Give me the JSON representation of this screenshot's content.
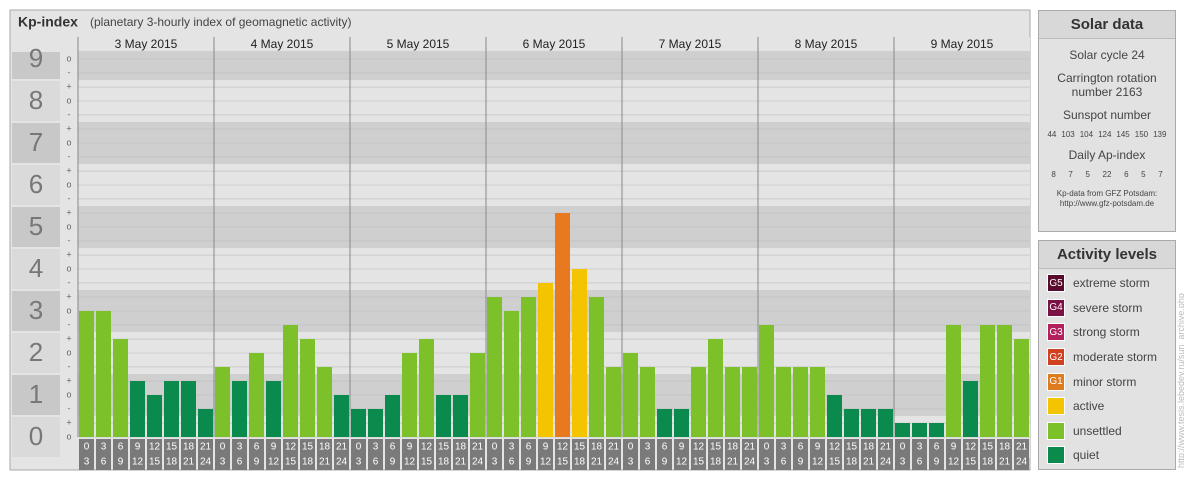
{
  "chart_data": {
    "type": "bar",
    "title": "Kp-index",
    "subtitle": "(planetary 3-hourly index of geomagnetic activity)",
    "ylim": [
      0,
      9
    ],
    "yticks": [
      0,
      1,
      2,
      3,
      4,
      5,
      6,
      7,
      8,
      9
    ],
    "minor_yticks": [
      {
        "value": 0,
        "label": "o"
      },
      {
        "value": 0.333,
        "label": "+"
      },
      {
        "value": 0.667,
        "label": "-"
      },
      {
        "value": 1,
        "label": "o"
      },
      {
        "value": 1.333,
        "label": "+"
      },
      {
        "value": 1.667,
        "label": "-"
      },
      {
        "value": 2,
        "label": "o"
      },
      {
        "value": 2.333,
        "label": "+"
      },
      {
        "value": 2.667,
        "label": "-"
      },
      {
        "value": 3,
        "label": "o"
      },
      {
        "value": 3.333,
        "label": "+"
      },
      {
        "value": 3.667,
        "label": "-"
      },
      {
        "value": 4,
        "label": "o"
      },
      {
        "value": 4.333,
        "label": "+"
      },
      {
        "value": 4.667,
        "label": "-"
      },
      {
        "value": 5,
        "label": "o"
      },
      {
        "value": 5.333,
        "label": "+"
      },
      {
        "value": 5.667,
        "label": "-"
      },
      {
        "value": 6,
        "label": "o"
      },
      {
        "value": 6.333,
        "label": "+"
      },
      {
        "value": 6.667,
        "label": "-"
      },
      {
        "value": 7,
        "label": "o"
      },
      {
        "value": 7.333,
        "label": "+"
      },
      {
        "value": 7.667,
        "label": "-"
      },
      {
        "value": 8,
        "label": "o"
      },
      {
        "value": 8.333,
        "label": "+"
      },
      {
        "value": 8.667,
        "label": "-"
      },
      {
        "value": 9,
        "label": "o"
      }
    ],
    "grid": true,
    "hours_from": [
      "0",
      "3",
      "6",
      "9",
      "12",
      "15",
      "18",
      "21"
    ],
    "hours_to": [
      "3",
      "6",
      "9",
      "12",
      "15",
      "18",
      "21",
      "24"
    ],
    "days": [
      {
        "label": "3 May 2015",
        "values": [
          3,
          3,
          2.333,
          1.333,
          1,
          1.333,
          1.333,
          0.667
        ],
        "colors": [
          "#7dc12a",
          "#7dc12a",
          "#7dc12a",
          "#0a8a4c",
          "#0a8a4c",
          "#0a8a4c",
          "#0a8a4c",
          "#0a8a4c"
        ]
      },
      {
        "label": "4 May 2015",
        "values": [
          1.667,
          1.333,
          2,
          1.333,
          2.667,
          2.333,
          1.667,
          1
        ],
        "colors": [
          "#7dc12a",
          "#0a8a4c",
          "#7dc12a",
          "#0a8a4c",
          "#7dc12a",
          "#7dc12a",
          "#7dc12a",
          "#0a8a4c"
        ]
      },
      {
        "label": "5 May 2015",
        "values": [
          0.667,
          0.667,
          1,
          2,
          2.333,
          1,
          1,
          2
        ],
        "colors": [
          "#0a8a4c",
          "#0a8a4c",
          "#0a8a4c",
          "#7dc12a",
          "#7dc12a",
          "#0a8a4c",
          "#0a8a4c",
          "#7dc12a"
        ]
      },
      {
        "label": "6 May 2015",
        "values": [
          3.333,
          3,
          3.333,
          3.667,
          5.333,
          4,
          3.333,
          1.667
        ],
        "colors": [
          "#7dc12a",
          "#7dc12a",
          "#7dc12a",
          "#f5c400",
          "#e8791e",
          "#f5c400",
          "#7dc12a",
          "#7dc12a"
        ]
      },
      {
        "label": "7 May 2015",
        "values": [
          2,
          1.667,
          0.667,
          0.667,
          1.667,
          2.333,
          1.667,
          1.667
        ],
        "colors": [
          "#7dc12a",
          "#7dc12a",
          "#0a8a4c",
          "#0a8a4c",
          "#7dc12a",
          "#7dc12a",
          "#7dc12a",
          "#7dc12a"
        ]
      },
      {
        "label": "8 May 2015",
        "values": [
          2.667,
          1.667,
          1.667,
          1.667,
          1,
          0.667,
          0.667,
          0.667
        ],
        "colors": [
          "#7dc12a",
          "#7dc12a",
          "#7dc12a",
          "#7dc12a",
          "#0a8a4c",
          "#0a8a4c",
          "#0a8a4c",
          "#0a8a4c"
        ]
      },
      {
        "label": "9 May 2015",
        "values": [
          0.333,
          0.333,
          0.333,
          2.667,
          1.333,
          2.667,
          2.667,
          2.333
        ],
        "colors": [
          "#0a8a4c",
          "#0a8a4c",
          "#0a8a4c",
          "#7dc12a",
          "#0a8a4c",
          "#7dc12a",
          "#7dc12a",
          "#7dc12a"
        ]
      }
    ]
  },
  "solar_data": {
    "title": "Solar data",
    "solar_cycle": "Solar cycle 24",
    "carrington": "Carrington rotation number 2163",
    "sunspot_title": "Sunspot number",
    "sunspot_numbers": [
      44,
      103,
      104,
      124,
      145,
      150,
      139
    ],
    "ap_title": "Daily Ap-index",
    "ap_index": [
      8,
      7,
      5,
      22,
      6,
      5,
      7
    ],
    "source": "Kp-data from GFZ Potsdam:",
    "source_url": "http://www.gfz-potsdam.de"
  },
  "activity_levels": {
    "title": "Activity levels",
    "items": [
      {
        "badge": "G5",
        "label": "extreme storm",
        "color": "#5a0a2c"
      },
      {
        "badge": "G4",
        "label": "severe storm",
        "color": "#7c1044"
      },
      {
        "badge": "G3",
        "label": "strong storm",
        "color": "#b3205c"
      },
      {
        "badge": "G2",
        "label": "moderate storm",
        "color": "#d0401e"
      },
      {
        "badge": "G1",
        "label": "minor storm",
        "color": "#e07a1e"
      },
      {
        "label": "active",
        "color": "#f5c400"
      },
      {
        "label": "unsettled",
        "color": "#7dc12a"
      },
      {
        "label": "quiet",
        "color": "#0a8a4c"
      }
    ]
  },
  "watermark": "http://www.tesis.lebedev.ru/sun_archive.php"
}
